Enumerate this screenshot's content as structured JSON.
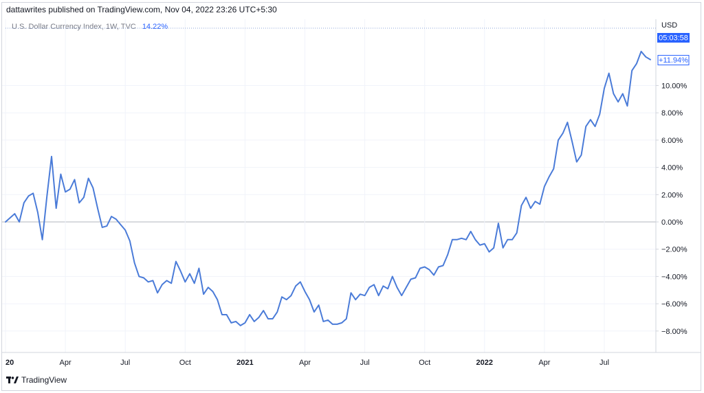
{
  "header": {
    "publish_line": "dattawrites published on TradingView.com, Nov 04, 2022 23:26 UTC+5:30"
  },
  "legend": {
    "symbol": "U.S. Dollar Currency Index, 1W, TVC",
    "change": "14.22%"
  },
  "price_scale": {
    "currency": "USD",
    "countdown": "05:03:58",
    "last_value": "+11.94%"
  },
  "footer": {
    "brand": "TradingView"
  },
  "colors": {
    "line": "#4a7bd8",
    "accent": "#2962ff",
    "grid": "#f0f3fa",
    "zero_line": "#b2b5be"
  },
  "chart_data": {
    "type": "line",
    "title": "U.S. Dollar Currency Index, 1W, TVC",
    "ylabel": "",
    "y_unit": "%",
    "ylim": [
      -8.9,
      12.2
    ],
    "y_ticks": [
      10,
      8,
      6,
      4,
      2,
      0,
      -2,
      -4,
      -6,
      -8
    ],
    "y_tick_labels": [
      "10.00%",
      "8.00%",
      "6.00%",
      "4.00%",
      "2.00%",
      "0.00%",
      "−2.00%",
      "−4.00%",
      "−6.00%",
      "−8.00%"
    ],
    "x_ticks": [
      {
        "week": 0,
        "label": "20",
        "bold": true
      },
      {
        "week": 13,
        "label": "Apr",
        "bold": false
      },
      {
        "week": 26,
        "label": "Jul",
        "bold": false
      },
      {
        "week": 39,
        "label": "Oct",
        "bold": false
      },
      {
        "week": 52,
        "label": "2021",
        "bold": true
      },
      {
        "week": 65,
        "label": "Apr",
        "bold": false
      },
      {
        "week": 78,
        "label": "Jul",
        "bold": false
      },
      {
        "week": 91,
        "label": "Oct",
        "bold": false
      },
      {
        "week": 104,
        "label": "2022",
        "bold": true
      },
      {
        "week": 117,
        "label": "Apr",
        "bold": false
      },
      {
        "week": 130,
        "label": "Jul",
        "bold": false
      }
    ],
    "series": [
      {
        "values": [
          0.0,
          0.3,
          0.6,
          0.0,
          1.4,
          1.9,
          2.1,
          0.7,
          -1.3,
          1.9,
          4.8,
          1.0,
          3.5,
          2.2,
          2.4,
          3.1,
          1.4,
          1.8,
          3.2,
          2.5,
          1.0,
          -0.4,
          -0.3,
          0.4,
          0.2,
          -0.2,
          -0.6,
          -1.4,
          -3.0,
          -4.0,
          -4.1,
          -4.4,
          -4.3,
          -5.2,
          -4.6,
          -4.3,
          -4.5,
          -2.9,
          -3.6,
          -4.4,
          -3.8,
          -4.5,
          -3.4,
          -5.3,
          -4.8,
          -5.1,
          -5.7,
          -6.8,
          -6.8,
          -7.4,
          -7.3,
          -7.6,
          -7.4,
          -6.8,
          -7.3,
          -7.0,
          -6.5,
          -7.1,
          -7.1,
          -6.6,
          -5.5,
          -5.7,
          -5.4,
          -4.7,
          -4.4,
          -5.1,
          -5.7,
          -6.6,
          -6.1,
          -7.3,
          -7.2,
          -7.5,
          -7.5,
          -7.4,
          -7.1,
          -5.2,
          -5.7,
          -5.3,
          -5.4,
          -4.8,
          -4.6,
          -5.4,
          -4.7,
          -4.9,
          -4.0,
          -4.8,
          -5.4,
          -4.8,
          -4.2,
          -4.1,
          -3.4,
          -3.3,
          -3.5,
          -3.9,
          -3.3,
          -3.2,
          -2.4,
          -1.3,
          -1.3,
          -1.2,
          -1.3,
          -0.7,
          -1.3,
          -1.7,
          -1.6,
          -2.2,
          -1.9,
          -0.1,
          -1.9,
          -1.3,
          -1.3,
          -0.8,
          1.2,
          1.8,
          1.0,
          1.5,
          1.3,
          2.6,
          3.3,
          3.9,
          6.0,
          6.5,
          7.3,
          5.9,
          4.4,
          4.9,
          7.0,
          7.5,
          7.0,
          7.9,
          9.8,
          10.9,
          9.4,
          8.8,
          9.4,
          8.5,
          11.1,
          11.6,
          12.5,
          12.1,
          11.9
        ]
      }
    ]
  }
}
